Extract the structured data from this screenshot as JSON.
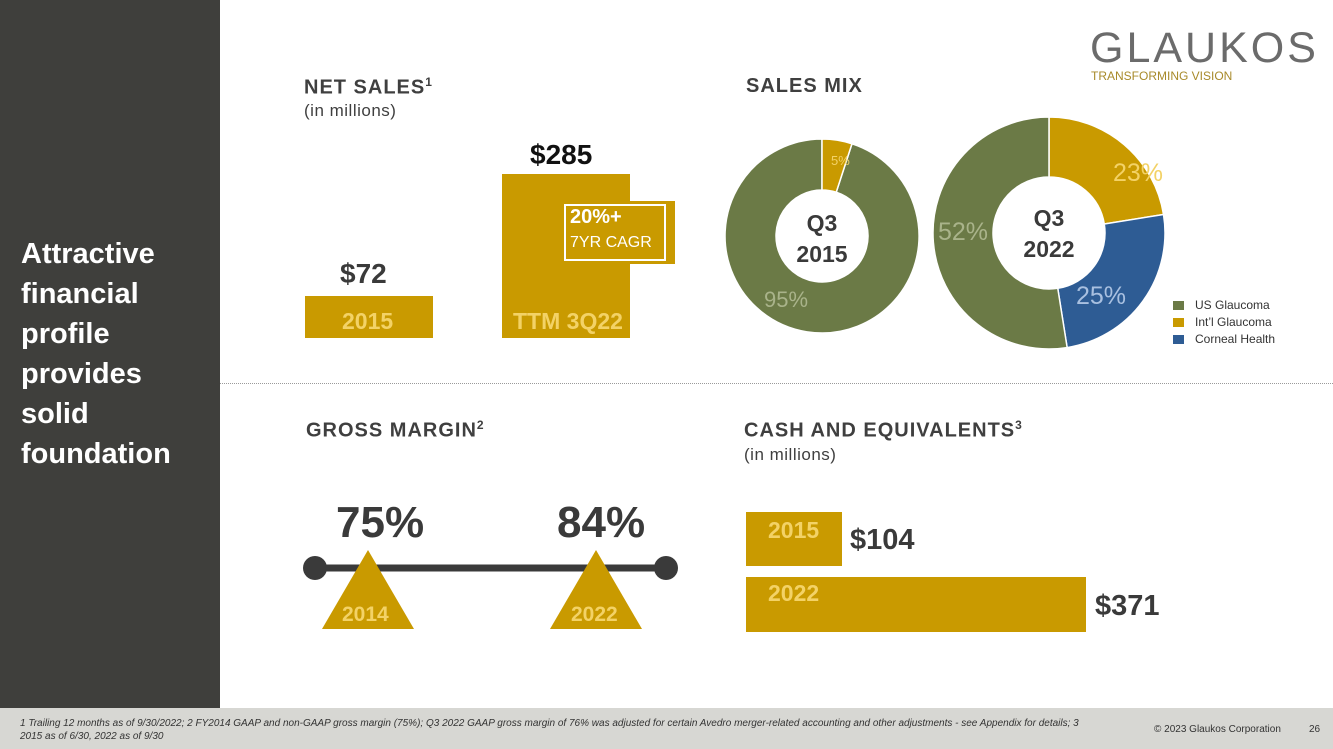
{
  "sidebar": {
    "title": "Attractive financial profile provides solid foundation"
  },
  "net_sales": {
    "heading": "NET SALES",
    "sup": "1",
    "unit": "(in millions)",
    "bars": [
      {
        "label": "2015",
        "value_text": "$72",
        "value": 72
      },
      {
        "label": "TTM 3Q22",
        "value_text": "$285",
        "value": 285
      }
    ],
    "cagr_big": "20%+",
    "cagr_small": "7YR CAGR"
  },
  "sales_mix": {
    "heading": "SALES MIX",
    "donut_2015": {
      "line1": "Q3",
      "line2": "2015",
      "slices": [
        {
          "name": "Int’l Glaucoma",
          "pct": 5,
          "label": "5%"
        },
        {
          "name": "US Glaucoma",
          "pct": 95,
          "label": "95%"
        }
      ]
    },
    "donut_2022": {
      "line1": "Q3",
      "line2": "2022",
      "slices": [
        {
          "name": "Int’l Glaucoma",
          "pct": 23,
          "label": "23%"
        },
        {
          "name": "Corneal Health",
          "pct": 25,
          "label": "25%"
        },
        {
          "name": "US Glaucoma",
          "pct": 52,
          "label": "52%"
        }
      ]
    },
    "legend": [
      {
        "name": "US Glaucoma",
        "color": "#6b7a46"
      },
      {
        "name": "Int’l Glaucoma",
        "color": "#c99a00"
      },
      {
        "name": "Corneal Health",
        "color": "#2e5c94"
      }
    ]
  },
  "gross_margin": {
    "heading": "GROSS MARGIN",
    "sup": "2",
    "points": [
      {
        "year": "2014",
        "value_text": "75%"
      },
      {
        "year": "2022",
        "value_text": "84%"
      }
    ]
  },
  "cash": {
    "heading": "CASH AND EQUIVALENTS",
    "sup": "3",
    "unit": "(in millions)",
    "bars": [
      {
        "label": "2015",
        "value_text": "$104",
        "value": 104
      },
      {
        "label": "2022",
        "value_text": "$371",
        "value": 371
      }
    ]
  },
  "logo": {
    "name": "GLAUKOS",
    "tagline": "TRANSFORMING VISION"
  },
  "footer": {
    "footnote": "1 Trailing 12 months as of 9/30/2022; 2 FY2014 GAAP and non-GAAP gross margin (75%);  Q3 2022 GAAP gross margin of 76% was adjusted for certain Avedro merger-related accounting and other adjustments - see Appendix for details; 3 2015 as of 6/30, 2022 as of 9/30",
    "copyright": "© 2023 Glaukos Corporation",
    "page": "26"
  },
  "colors": {
    "gold": "#c99a00",
    "olive": "#6b7a46",
    "blue": "#2e5c94",
    "dark": "#3f3f3c"
  },
  "chart_data": [
    {
      "type": "bar",
      "title": "NET SALES",
      "categories": [
        "2015",
        "TTM 3Q22"
      ],
      "values": [
        72,
        285
      ],
      "ylabel": "(in millions)"
    },
    {
      "type": "pie",
      "title": "Q3 2015",
      "categories": [
        "US Glaucoma",
        "Int’l Glaucoma"
      ],
      "values": [
        95,
        5
      ]
    },
    {
      "type": "pie",
      "title": "Q3 2022",
      "categories": [
        "US Glaucoma",
        "Int’l Glaucoma",
        "Corneal Health"
      ],
      "values": [
        52,
        23,
        25
      ]
    },
    {
      "type": "bar",
      "title": "CASH AND EQUIVALENTS",
      "categories": [
        "2015",
        "2022"
      ],
      "values": [
        104,
        371
      ],
      "ylabel": "(in millions)"
    }
  ]
}
